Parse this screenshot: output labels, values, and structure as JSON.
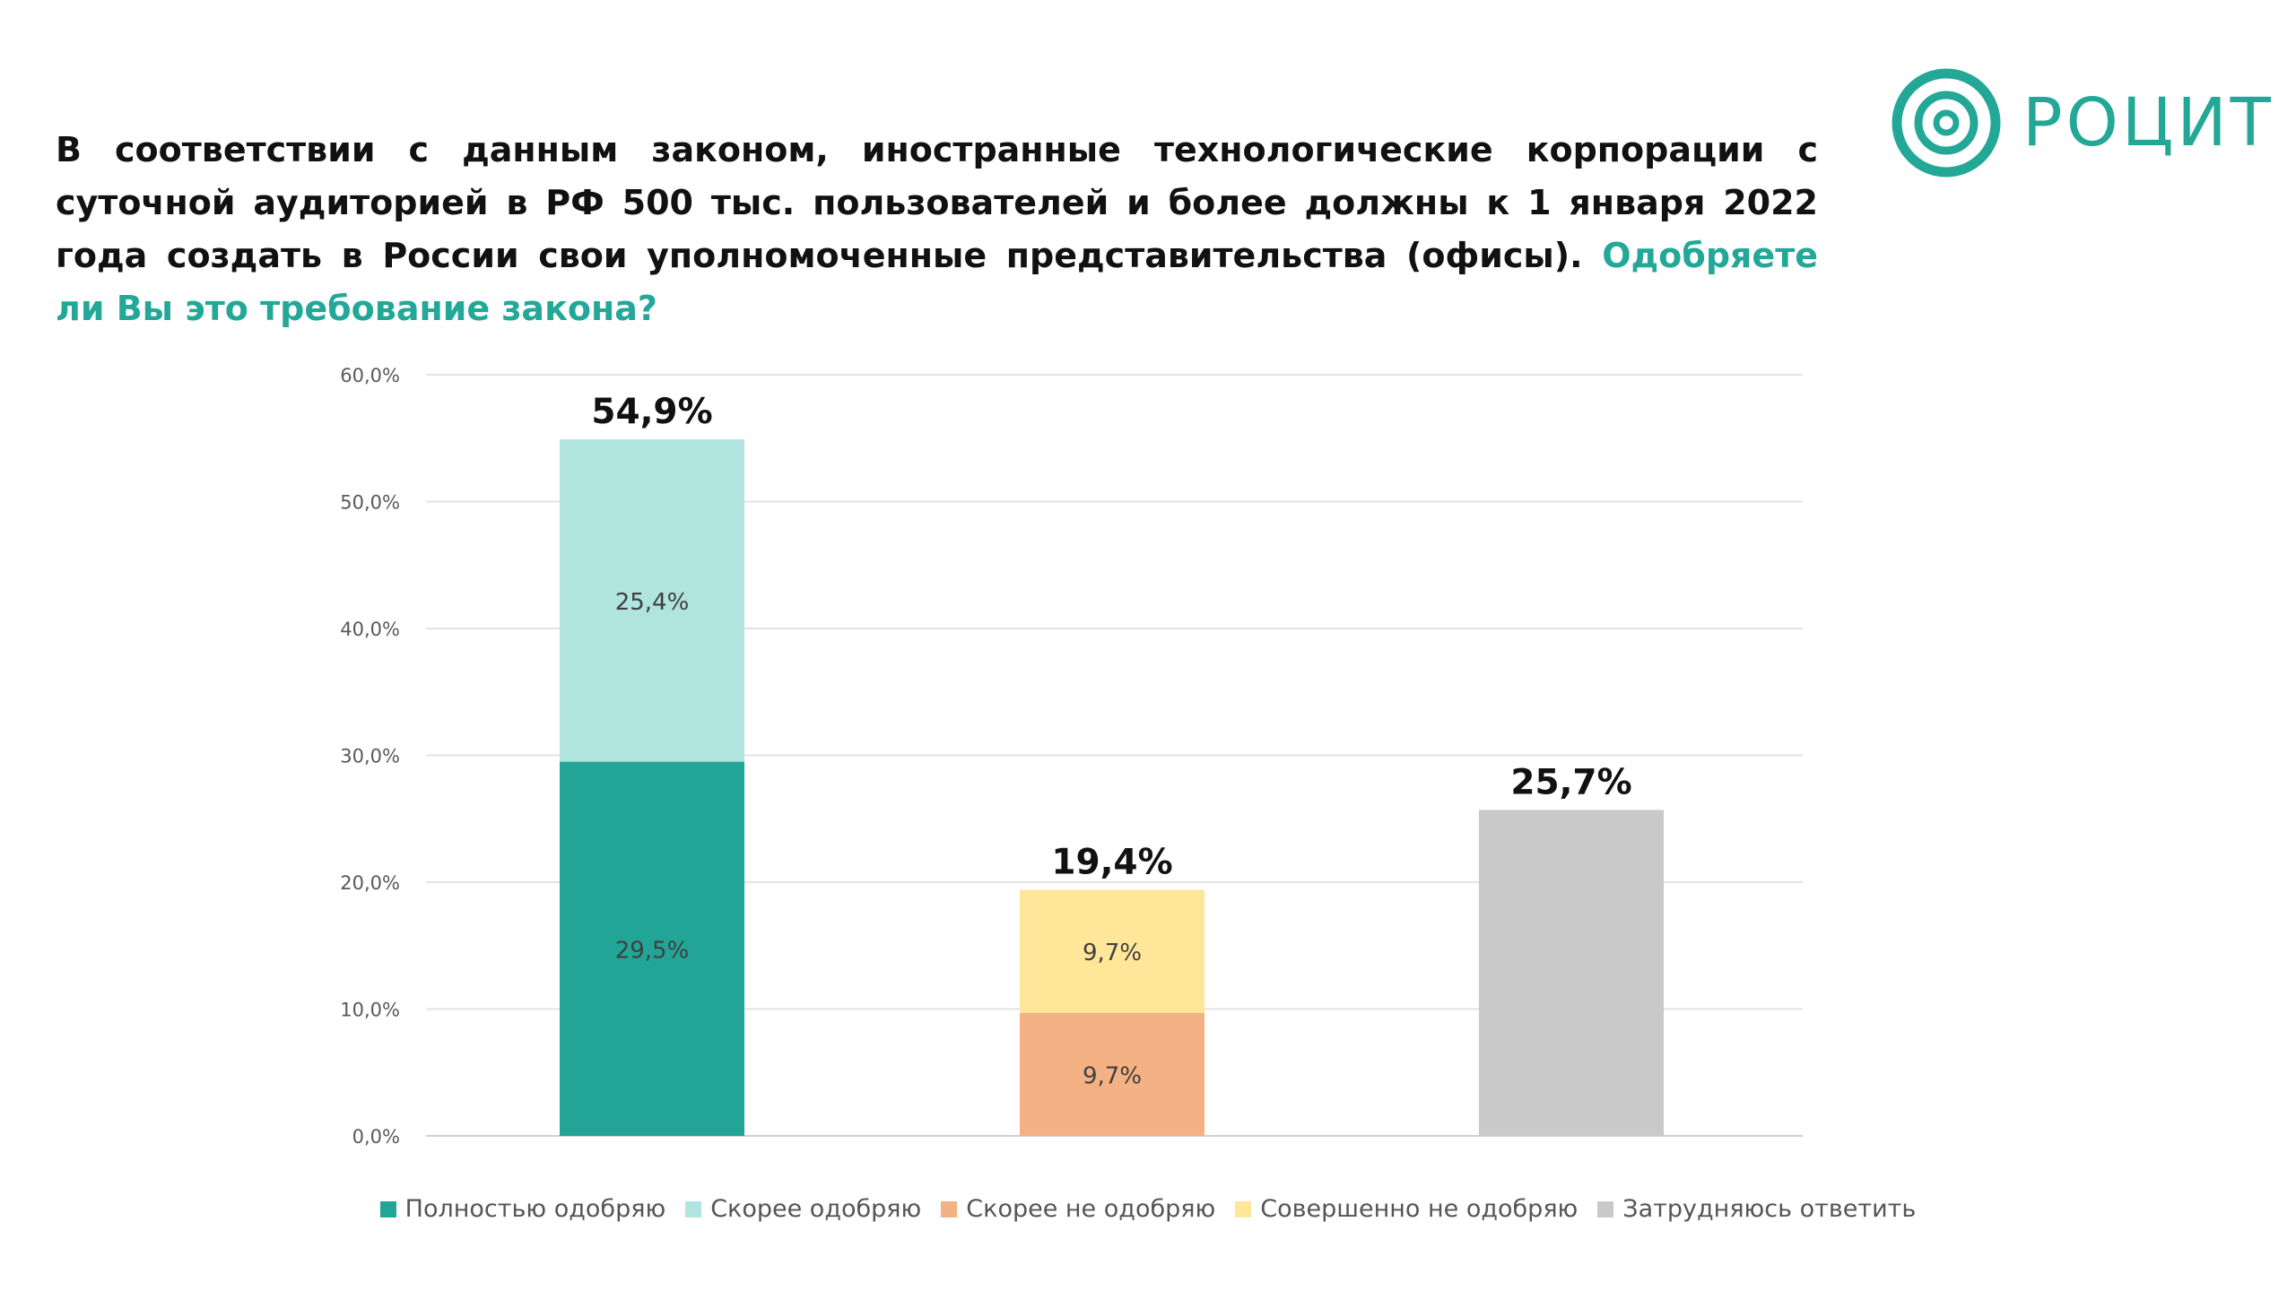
{
  "headline": {
    "text": "В соответствии с данным законом, иностранные технологические корпорации с суточной аудиторией в РФ 500 тыс. пользователей и более должны к 1 января 2022 года создать в России свои уполномоченные представительства (офисы). ",
    "question": "Одобряете ли Вы это требование закона?"
  },
  "logo": {
    "text": "РОЦИТ",
    "icon": "concentric-circles-logo-icon",
    "color": "#23a898"
  },
  "chart_data": {
    "type": "bar",
    "stacked": true,
    "categories": [
      "",
      "",
      ""
    ],
    "ylim": [
      0,
      60
    ],
    "yticks": [
      "0,0%",
      "10,0%",
      "20,0%",
      "30,0%",
      "40,0%",
      "50,0%",
      "60,0%"
    ],
    "grid": true,
    "legend_position": "bottom",
    "series": [
      {
        "name": "Полностью одобряю",
        "color": "#22a596",
        "values": [
          29.5,
          0,
          0
        ],
        "labels": [
          "29,5%",
          "",
          ""
        ]
      },
      {
        "name": "Скорее одобряю",
        "color": "#b0e4df",
        "values": [
          25.4,
          0,
          0
        ],
        "labels": [
          "25,4%",
          "",
          ""
        ]
      },
      {
        "name": "Скорее не одобряю",
        "color": "#f4b183",
        "values": [
          0,
          9.7,
          0
        ],
        "labels": [
          "",
          "9,7%",
          ""
        ]
      },
      {
        "name": "Совершенно не одобряю",
        "color": "#ffe699",
        "values": [
          0,
          9.7,
          0
        ],
        "labels": [
          "",
          "9,7%",
          ""
        ]
      },
      {
        "name": "Затрудняюсь ответить",
        "color": "#c9c9c9",
        "values": [
          0,
          0,
          25.7
        ],
        "labels": [
          "",
          "",
          ""
        ]
      }
    ],
    "totals": [
      {
        "value": 54.9,
        "label": "54,9%"
      },
      {
        "value": 19.4,
        "label": "19,4%"
      },
      {
        "value": 25.7,
        "label": "25,7%"
      }
    ]
  }
}
